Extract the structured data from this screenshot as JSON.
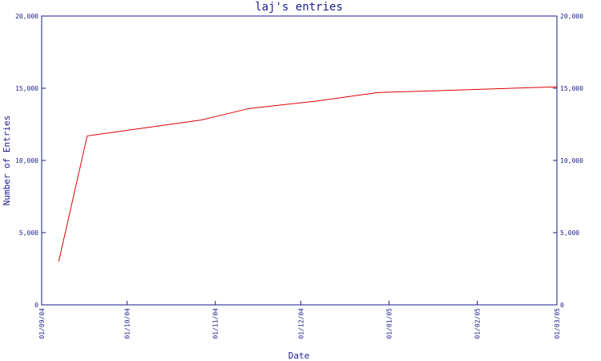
{
  "chart_data": {
    "type": "line",
    "title": "laj's entries",
    "xlabel": "Date",
    "ylabel": "Number of Entries",
    "ylim": [
      0,
      20000
    ],
    "yticks": [
      "0",
      "5,000",
      "10,000",
      "15,000",
      "20,000"
    ],
    "yticks_right": [
      "0",
      "5,000",
      "10,000",
      "15,000",
      "20,000"
    ],
    "yticks_values": [
      0,
      5000,
      10000,
      15000,
      20000
    ],
    "xticks": [
      "01/09/04",
      "01/10/04",
      "01/11/04",
      "01/12/04",
      "01/01/05",
      "01/02/05",
      "01/03/05"
    ],
    "xticks_values": [
      "2004-09-01",
      "2004-10-01",
      "2004-11-01",
      "2004-12-01",
      "2005-01-01",
      "2005-02-01",
      "2005-03-01"
    ],
    "xlim": [
      "2004-09-01",
      "2005-03-01"
    ],
    "grid": false,
    "legend": "none",
    "series": [
      {
        "color": "#dd0000",
        "x": [
          "2004-09-07",
          "2004-09-17",
          "2004-10-27",
          "2004-11-13",
          "2004-12-06",
          "2004-12-28",
          "2005-03-01"
        ],
        "y": [
          3000,
          11700,
          12800,
          13600,
          14100,
          14700,
          15100
        ]
      }
    ]
  }
}
